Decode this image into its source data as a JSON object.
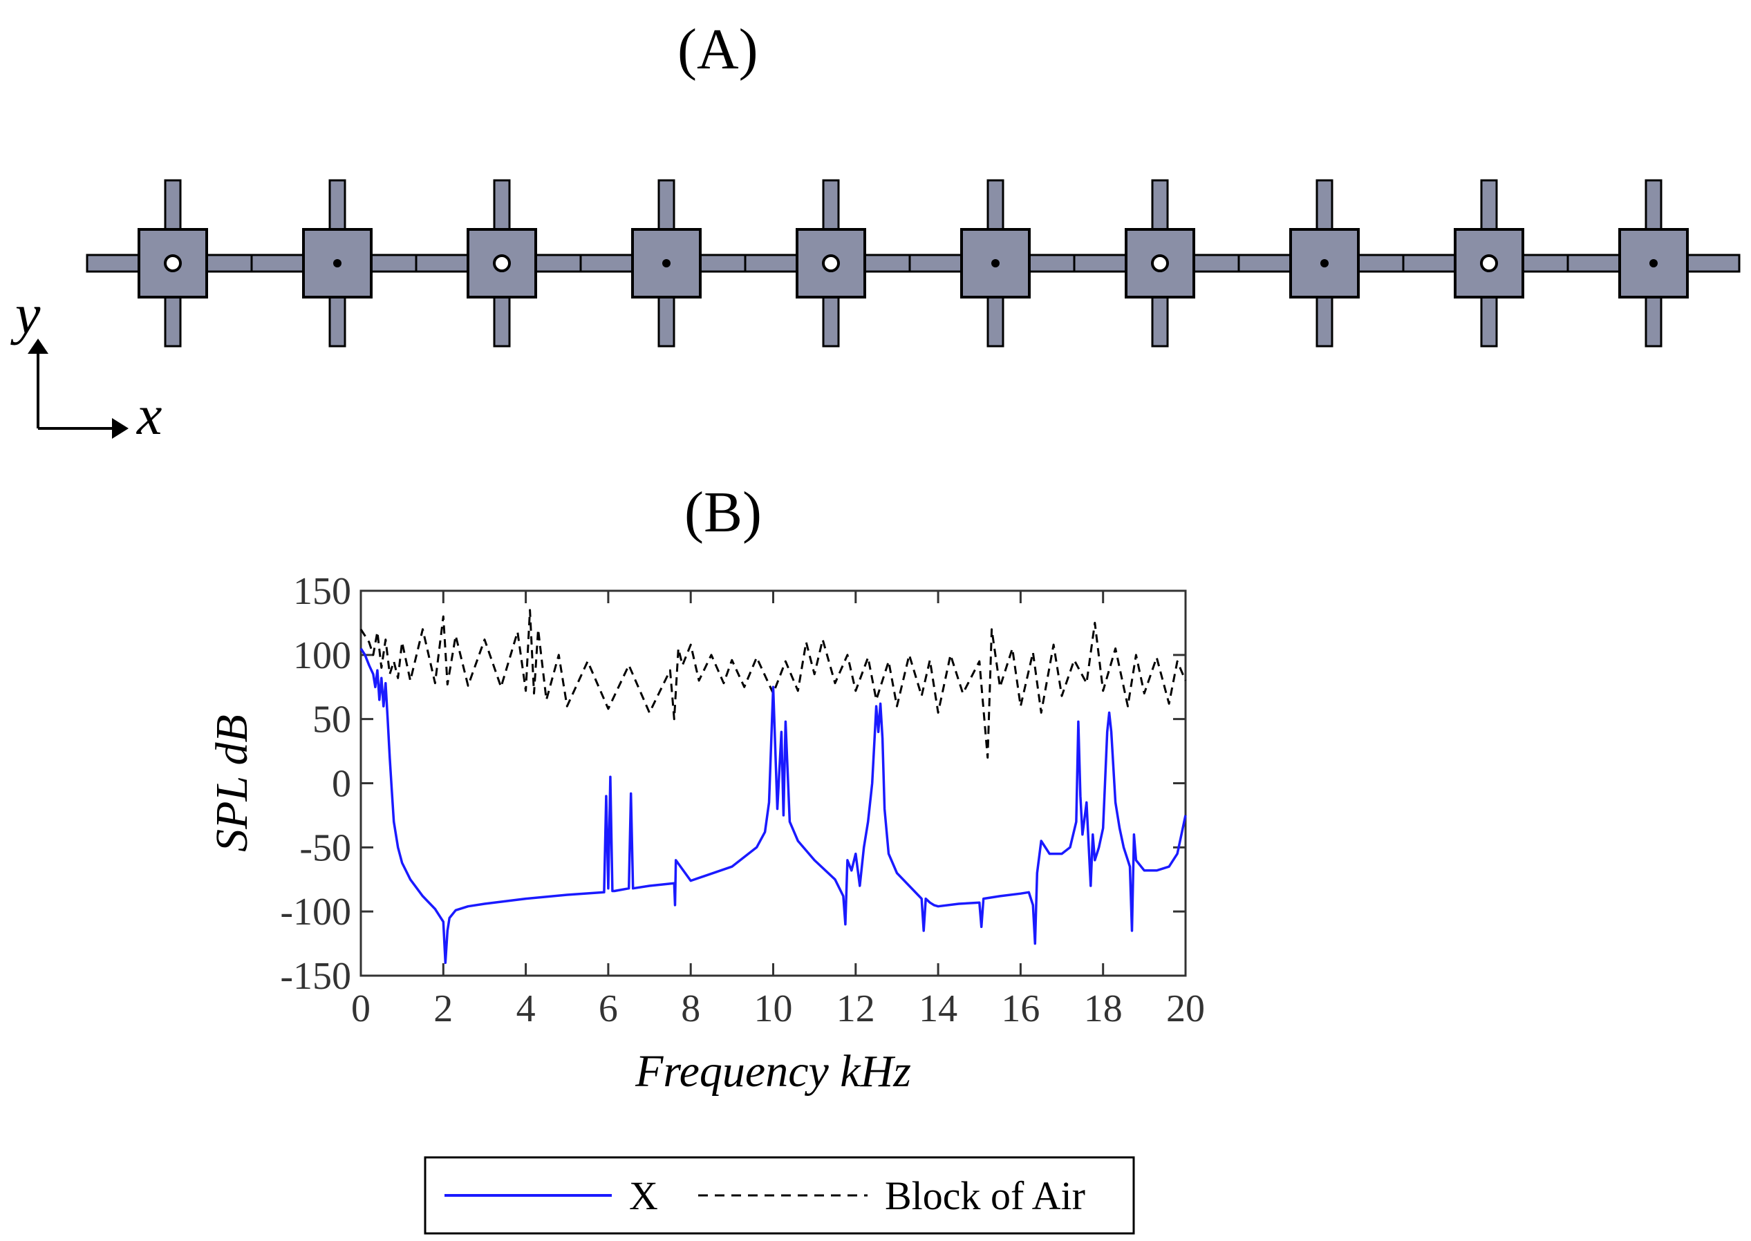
{
  "panels": {
    "a": "(A)",
    "b": "(B)"
  },
  "schematic": {
    "cell_count": 10,
    "colors": {
      "cell_fill": "#8a8fa6",
      "stroke": "#000000"
    },
    "axes": {
      "x": "x",
      "y": "y"
    }
  },
  "chart_data": {
    "type": "line",
    "xlabel": "Frequency kHz",
    "ylabel": "SPL dB",
    "xlim": [
      0,
      20
    ],
    "ylim": [
      -150,
      150
    ],
    "xticks": [
      0,
      2,
      4,
      6,
      8,
      10,
      12,
      14,
      16,
      18,
      20
    ],
    "yticks": [
      150,
      100,
      50,
      0,
      -50,
      -100,
      -150
    ],
    "legend_position": "bottom-center",
    "series": [
      {
        "name": "X",
        "color": "#1a1aff",
        "style": "solid",
        "x": [
          0,
          0.1,
          0.2,
          0.3,
          0.35,
          0.4,
          0.45,
          0.5,
          0.55,
          0.6,
          0.65,
          0.7,
          0.75,
          0.8,
          0.9,
          1.0,
          1.2,
          1.5,
          1.8,
          2.0,
          2.05,
          2.1,
          2.15,
          2.3,
          2.6,
          3.0,
          4.0,
          5.0,
          5.9,
          5.95,
          6.0,
          6.05,
          6.1,
          6.15,
          6.5,
          6.55,
          6.6,
          7.0,
          7.6,
          7.62,
          7.64,
          8.0,
          9.0,
          9.6,
          9.8,
          9.9,
          10.0,
          10.1,
          10.2,
          10.25,
          10.3,
          10.4,
          10.6,
          11.0,
          11.5,
          11.7,
          11.75,
          11.8,
          11.9,
          12.0,
          12.1,
          12.2,
          12.3,
          12.4,
          12.5,
          12.55,
          12.6,
          12.65,
          12.7,
          12.8,
          13.0,
          13.3,
          13.6,
          13.65,
          13.7,
          13.8,
          13.9,
          14.0,
          14.5,
          15.0,
          15.05,
          15.1,
          15.5,
          16.0,
          16.2,
          16.3,
          16.35,
          16.4,
          16.5,
          16.7,
          17.0,
          17.2,
          17.35,
          17.4,
          17.45,
          17.5,
          17.6,
          17.7,
          17.75,
          17.8,
          17.9,
          18.0,
          18.1,
          18.15,
          18.2,
          18.3,
          18.4,
          18.5,
          18.6,
          18.65,
          18.7,
          18.75,
          18.8,
          19.0,
          19.3,
          19.6,
          19.8,
          20.0
        ],
        "values": [
          105,
          100,
          92,
          85,
          75,
          88,
          65,
          82,
          60,
          78,
          50,
          20,
          -5,
          -30,
          -50,
          -62,
          -75,
          -88,
          -98,
          -108,
          -140,
          -115,
          -105,
          -99,
          -96,
          -94,
          -90,
          -87,
          -85,
          -10,
          -82,
          5,
          -84,
          -84,
          -82,
          -8,
          -82,
          -80,
          -78,
          -95,
          -60,
          -76,
          -65,
          -50,
          -38,
          -15,
          75,
          -20,
          40,
          -25,
          48,
          -30,
          -45,
          -60,
          -75,
          -88,
          -110,
          -60,
          -68,
          -55,
          -80,
          -50,
          -30,
          0,
          60,
          40,
          62,
          35,
          -20,
          -55,
          -70,
          -80,
          -90,
          -115,
          -90,
          -93,
          -95,
          -96,
          -94,
          -93,
          -112,
          -90,
          -88,
          -86,
          -85,
          -95,
          -125,
          -70,
          -45,
          -55,
          -55,
          -50,
          -30,
          48,
          -10,
          -40,
          -15,
          -80,
          -40,
          -60,
          -50,
          -35,
          40,
          55,
          40,
          -15,
          -35,
          -50,
          -60,
          -65,
          -115,
          -40,
          -60,
          -68,
          -68,
          -65,
          -55,
          -25
        ]
      },
      {
        "name": "Block of Air",
        "color": "#000000",
        "style": "dashed",
        "x": [
          0,
          0.2,
          0.3,
          0.4,
          0.5,
          0.6,
          0.7,
          0.8,
          0.9,
          1.0,
          1.2,
          1.5,
          1.8,
          2.0,
          2.1,
          2.3,
          2.6,
          3.0,
          3.4,
          3.8,
          4.0,
          4.1,
          4.2,
          4.3,
          4.5,
          4.8,
          5.0,
          5.5,
          6.0,
          6.5,
          7.0,
          7.5,
          7.6,
          7.7,
          7.8,
          8.0,
          8.2,
          8.5,
          8.8,
          9.0,
          9.3,
          9.6,
          10.0,
          10.3,
          10.6,
          10.8,
          11.0,
          11.2,
          11.5,
          11.8,
          12.0,
          12.3,
          12.5,
          12.8,
          13.0,
          13.3,
          13.6,
          13.8,
          14.0,
          14.3,
          14.6,
          15.0,
          15.2,
          15.3,
          15.5,
          15.8,
          16.0,
          16.3,
          16.5,
          16.8,
          17.0,
          17.3,
          17.6,
          17.8,
          18.0,
          18.3,
          18.6,
          18.8,
          19.0,
          19.3,
          19.6,
          19.8,
          20.0
        ],
        "values": [
          120,
          110,
          100,
          118,
          90,
          112,
          85,
          95,
          82,
          110,
          80,
          120,
          78,
          130,
          77,
          115,
          76,
          112,
          75,
          118,
          72,
          135,
          70,
          120,
          65,
          100,
          60,
          95,
          58,
          92,
          55,
          88,
          50,
          105,
          92,
          108,
          80,
          100,
          78,
          96,
          75,
          98,
          70,
          95,
          72,
          110,
          85,
          112,
          78,
          100,
          72,
          98,
          65,
          95,
          60,
          100,
          68,
          96,
          55,
          100,
          70,
          95,
          20,
          120,
          75,
          105,
          60,
          102,
          55,
          108,
          68,
          96,
          78,
          125,
          72,
          105,
          60,
          100,
          70,
          98,
          62,
          95,
          80
        ]
      }
    ]
  }
}
